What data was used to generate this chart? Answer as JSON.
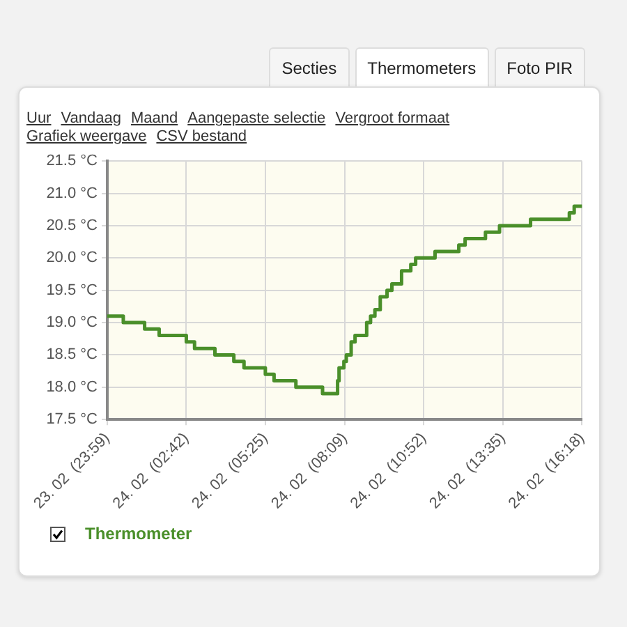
{
  "chart_data": {
    "type": "step",
    "annotations": [
      "Secties",
      "Thermometers",
      "Foto PIR",
      "Uur",
      "Vandaag",
      "Maand",
      "Aangepaste selectie",
      "Vergroot formaat",
      "Grafiek weergave",
      "CSV bestand"
    ],
    "series": [
      {
        "name": "Thermometer",
        "color": "#4a8f2a",
        "x": [
          "--02-23T23:59",
          "--02-24T00:32",
          "--02-24T01:16",
          "--02-24T01:46",
          "--02-24T02:42",
          "--02-24T02:59",
          "--02-24T03:41",
          "--02-24T04:20",
          "--02-24T04:41",
          "--02-24T05:25",
          "--02-24T05:43",
          "--02-24T06:28",
          "--02-24T07:23",
          "--02-24T07:54",
          "--02-24T07:57",
          "--02-24T08:07",
          "--02-24T08:12",
          "--02-24T08:22",
          "--02-24T08:30",
          "--02-24T08:54",
          "--02-24T09:02",
          "--02-24T09:11",
          "--02-24T09:22",
          "--02-24T09:36",
          "--02-24T09:46",
          "--02-24T10:06",
          "--02-24T10:25",
          "--02-24T10:35",
          "--02-24T10:50",
          "--02-24T11:15",
          "--02-24T12:04",
          "--02-24T12:17",
          "--02-24T12:59",
          "--02-24T13:28",
          "--02-24T14:32",
          "--02-24T15:52",
          "--02-24T16:02",
          "--02-24T16:18"
        ],
        "values": [
          19.1,
          19.0,
          18.9,
          18.8,
          18.7,
          18.6,
          18.5,
          18.4,
          18.3,
          18.2,
          18.1,
          18.0,
          17.9,
          18.1,
          18.3,
          18.4,
          18.5,
          18.7,
          18.8,
          19.0,
          19.1,
          19.2,
          19.4,
          19.5,
          19.6,
          19.8,
          19.9,
          20.0,
          20.0,
          20.1,
          20.2,
          20.3,
          20.4,
          20.5,
          20.6,
          20.7,
          20.8,
          20.8
        ]
      }
    ],
    "xlim": [
      "--02-23T23:59",
      "--02-24T16:18"
    ],
    "xticks": [
      {
        "value": "--02-23T23:59",
        "label": "23. 02  (23:59)"
      },
      {
        "value": "--02-24T02:42",
        "label": "24. 02  (02:42)"
      },
      {
        "value": "--02-24T05:25",
        "label": "24. 02  (05:25)"
      },
      {
        "value": "--02-24T08:09",
        "label": "24. 02  (08:09)"
      },
      {
        "value": "--02-24T10:52",
        "label": "24. 02  (10:52)"
      },
      {
        "value": "--02-24T13:35",
        "label": "24. 02  (13:35)"
      },
      {
        "value": "--02-24T16:18",
        "label": "24. 02  (16:18)"
      }
    ],
    "ylim": [
      17.5,
      21.5
    ],
    "yticks": [
      {
        "value": 17.5,
        "label": "17.5 °C"
      },
      {
        "value": 18.0,
        "label": "18.0 °C"
      },
      {
        "value": 18.5,
        "label": "18.5 °C"
      },
      {
        "value": 19.0,
        "label": "19.0 °C"
      },
      {
        "value": 19.5,
        "label": "19.5 °C"
      },
      {
        "value": 20.0,
        "label": "20.0 °C"
      },
      {
        "value": 20.5,
        "label": "20.5 °C"
      },
      {
        "value": 21.0,
        "label": "21.0 °C"
      },
      {
        "value": 21.5,
        "label": "21.5 °C"
      }
    ],
    "grid": true,
    "legend": "bottom left",
    "marker": "none",
    "line_style": "solid"
  }
}
